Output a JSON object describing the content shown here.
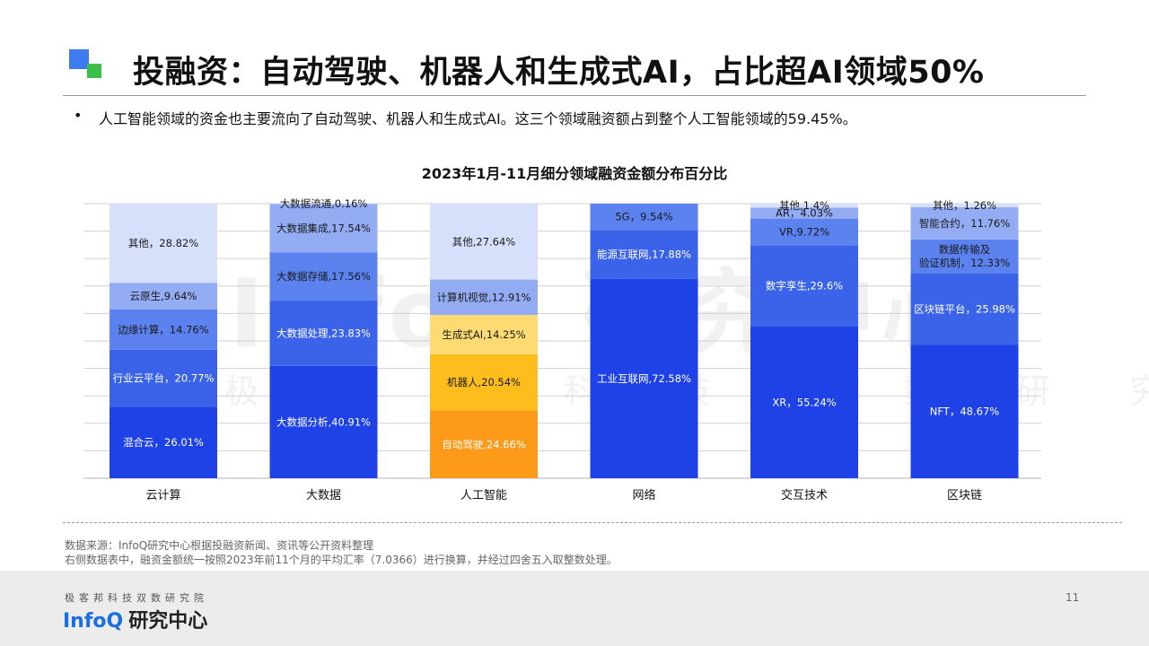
{
  "title": "投融资：自动驾驶、机器人和生成式AI，占比超AI领域50%",
  "bullet": "人工智能领域的资金也主要流向了自动驾驶、机器人和生成式AI。这三个领域融资额占到整个人工智能领域的59.45%。",
  "watermark": {
    "big": "InfoQ 研究中心",
    "small": "极客邦科技双数研究院"
  },
  "chart_data": {
    "type": "bar",
    "stacked": "percent",
    "title": "2023年1月-11月细分领域融资金额分布百分比",
    "categories": [
      "云计算",
      "大数据",
      "人工智能",
      "网络",
      "交互技术",
      "区块链"
    ],
    "ylim": [
      0,
      100
    ],
    "grid": true,
    "stacks": [
      {
        "category": "云计算",
        "segments": [
          {
            "label": "混合云，26.01%",
            "value": 26.01
          },
          {
            "label": "行业云平台，20.77%",
            "value": 20.77
          },
          {
            "label": "边缘计算，14.76%",
            "value": 14.76
          },
          {
            "label": "云原生,9.64%",
            "value": 9.64
          },
          {
            "label": "其他，28.82%",
            "value": 28.82
          }
        ]
      },
      {
        "category": "大数据",
        "segments": [
          {
            "label": "大数据分析,40.91%",
            "value": 40.91
          },
          {
            "label": "大数据处理,23.83%",
            "value": 23.83
          },
          {
            "label": "大数据存储,17.56%",
            "value": 17.56
          },
          {
            "label": "大数据集成,17.54%",
            "value": 17.54
          },
          {
            "label": "大数据流通,0.16%",
            "value": 0.16
          }
        ]
      },
      {
        "category": "人工智能",
        "segments": [
          {
            "label": "自动驾驶,24.66%",
            "value": 24.66
          },
          {
            "label": "机器人,20.54%",
            "value": 20.54
          },
          {
            "label": "生成式AI,14.25%",
            "value": 14.25
          },
          {
            "label": "计算机视觉,12.91%",
            "value": 12.91
          },
          {
            "label": "其他,27.64%",
            "value": 27.64
          }
        ]
      },
      {
        "category": "网络",
        "segments": [
          {
            "label": "工业互联网,72.58%",
            "value": 72.58
          },
          {
            "label": "能源互联网,17.88%",
            "value": 17.88
          },
          {
            "label": "5G，9.54%",
            "value": 9.54
          }
        ]
      },
      {
        "category": "交互技术",
        "segments": [
          {
            "label": "XR，55.24%",
            "value": 55.24
          },
          {
            "label": "数字孪生,29.6%",
            "value": 29.6
          },
          {
            "label": "VR,9.72%",
            "value": 9.72
          },
          {
            "label": "AR，4.03%",
            "value": 4.03
          },
          {
            "label": "其他,1.4%",
            "value": 1.4
          }
        ]
      },
      {
        "category": "区块链",
        "segments": [
          {
            "label": "NFT，48.67%",
            "value": 48.67
          },
          {
            "label": "区块链平台，25.98%",
            "value": 25.98
          },
          {
            "label": "数据传输及\n验证机制，12.33%",
            "value": 12.33
          },
          {
            "label": "智能合约，11.76%",
            "value": 11.76
          },
          {
            "label": "其他，1.26%",
            "value": 1.26
          }
        ]
      }
    ],
    "colors": {
      "blue": [
        "#1e42e6",
        "#3a63ea",
        "#5b82ef",
        "#93acf4",
        "#d7e0fb"
      ],
      "ai": [
        "#fd9a1a",
        "#fdbd1d",
        "#fdda72",
        "#93acf4",
        "#d7e0fb"
      ]
    }
  },
  "source": [
    "数据来源：InfoQ研究中心根据投融资新闻、资讯等公开资料整理",
    "右侧数据表中，融资金额统一按照2023年前11个月的平均汇率（7.0366）进行换算，并经过四舍五入取整数处理。"
  ],
  "footer": {
    "org": "极客邦科技双数研究院",
    "logo_en": "InfoQ",
    "logo_cn": "研究中心",
    "page": "11"
  }
}
